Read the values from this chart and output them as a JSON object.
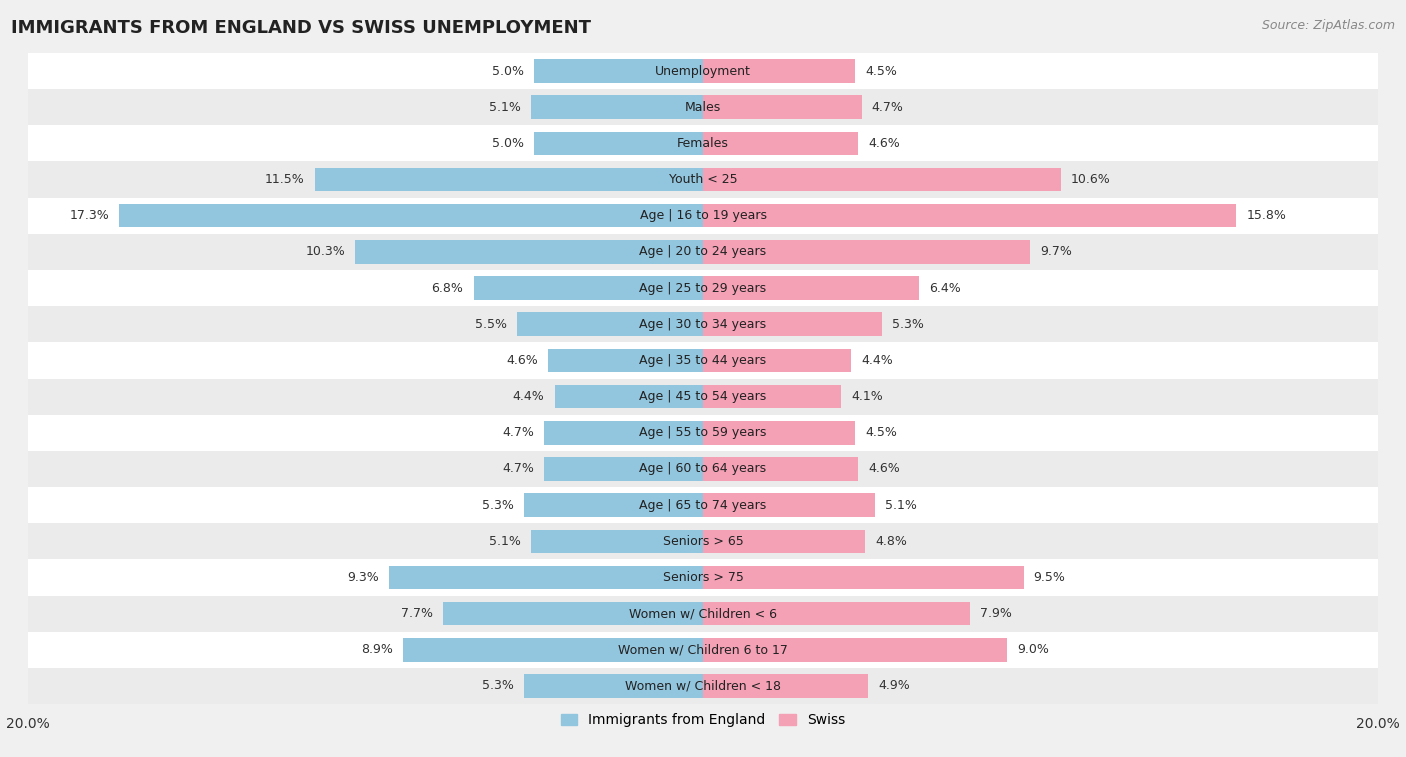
{
  "title": "IMMIGRANTS FROM ENGLAND VS SWISS UNEMPLOYMENT",
  "source": "Source: ZipAtlas.com",
  "categories": [
    "Unemployment",
    "Males",
    "Females",
    "Youth < 25",
    "Age | 16 to 19 years",
    "Age | 20 to 24 years",
    "Age | 25 to 29 years",
    "Age | 30 to 34 years",
    "Age | 35 to 44 years",
    "Age | 45 to 54 years",
    "Age | 55 to 59 years",
    "Age | 60 to 64 years",
    "Age | 65 to 74 years",
    "Seniors > 65",
    "Seniors > 75",
    "Women w/ Children < 6",
    "Women w/ Children 6 to 17",
    "Women w/ Children < 18"
  ],
  "england_values": [
    5.0,
    5.1,
    5.0,
    11.5,
    17.3,
    10.3,
    6.8,
    5.5,
    4.6,
    4.4,
    4.7,
    4.7,
    5.3,
    5.1,
    9.3,
    7.7,
    8.9,
    5.3
  ],
  "swiss_values": [
    4.5,
    4.7,
    4.6,
    10.6,
    15.8,
    9.7,
    6.4,
    5.3,
    4.4,
    4.1,
    4.5,
    4.6,
    5.1,
    4.8,
    9.5,
    7.9,
    9.0,
    4.9
  ],
  "england_color": "#92C5DE",
  "swiss_color": "#F4A0B5",
  "row_color_even": "#ffffff",
  "row_color_odd": "#ebebeb",
  "background_color": "#f0f0f0",
  "xlim": 20.0,
  "legend_labels": [
    "Immigrants from England",
    "Swiss"
  ],
  "title_fontsize": 13,
  "source_fontsize": 9,
  "axis_fontsize": 10,
  "label_fontsize": 9,
  "value_fontsize": 9
}
